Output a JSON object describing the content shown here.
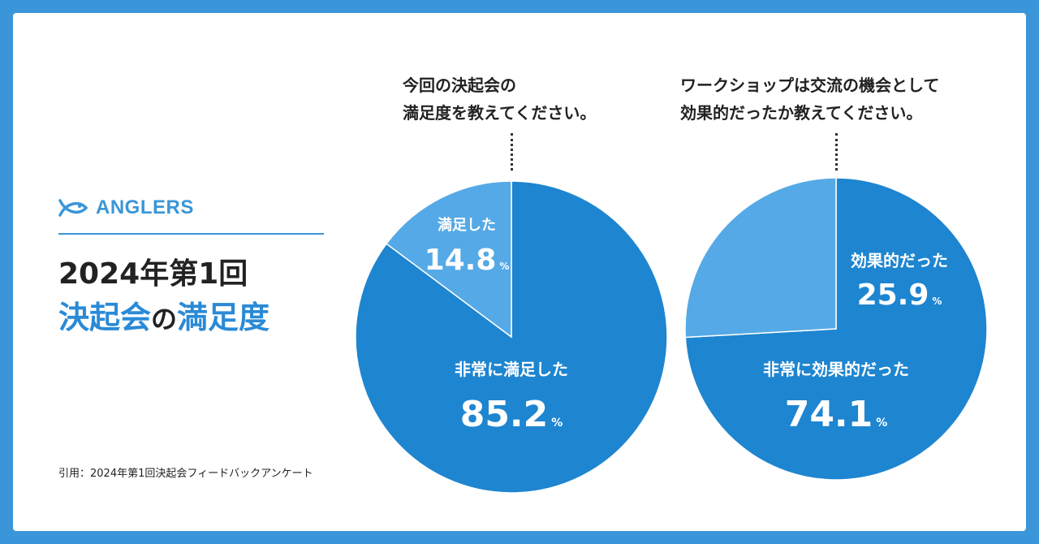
{
  "brand": {
    "name": "ANGLERS",
    "logo_icon": "fish-logo-icon"
  },
  "title": {
    "line1": "2024年第1回",
    "line2_a": "決起会",
    "line2_b": "の",
    "line2_c": "満足度"
  },
  "source": "引用：2024年第1回決起会フィードバックアンケート",
  "colors": {
    "background": "#3a96d8",
    "major_slice": "#1e85d0",
    "minor_slice": "#55a9e6",
    "brand": "#3a96d8"
  },
  "chart_data": [
    {
      "type": "pie",
      "title": "今回の決起会の満足度を教えてください。",
      "title_lines": [
        "今回の決起会の",
        "満足度を教えてください。"
      ],
      "slices": [
        {
          "label": "非常に満足した",
          "value": 85.2,
          "display": "85.2",
          "unit": "%",
          "color": "#1e85d0"
        },
        {
          "label": "満足した",
          "value": 14.8,
          "display": "14.8",
          "unit": "%",
          "color": "#55a9e6"
        }
      ]
    },
    {
      "type": "pie",
      "title": "ワークショップは交流の機会として効果的だったか教えてください。",
      "title_lines": [
        "ワークショップは交流の機会として",
        "効果的だったか教えてください。"
      ],
      "slices": [
        {
          "label": "非常に効果的だった",
          "value": 74.1,
          "display": "74.1",
          "unit": "%",
          "color": "#1e85d0"
        },
        {
          "label": "効果的だった",
          "value": 25.9,
          "display": "25.9",
          "unit": "%",
          "color": "#55a9e6"
        }
      ]
    }
  ]
}
